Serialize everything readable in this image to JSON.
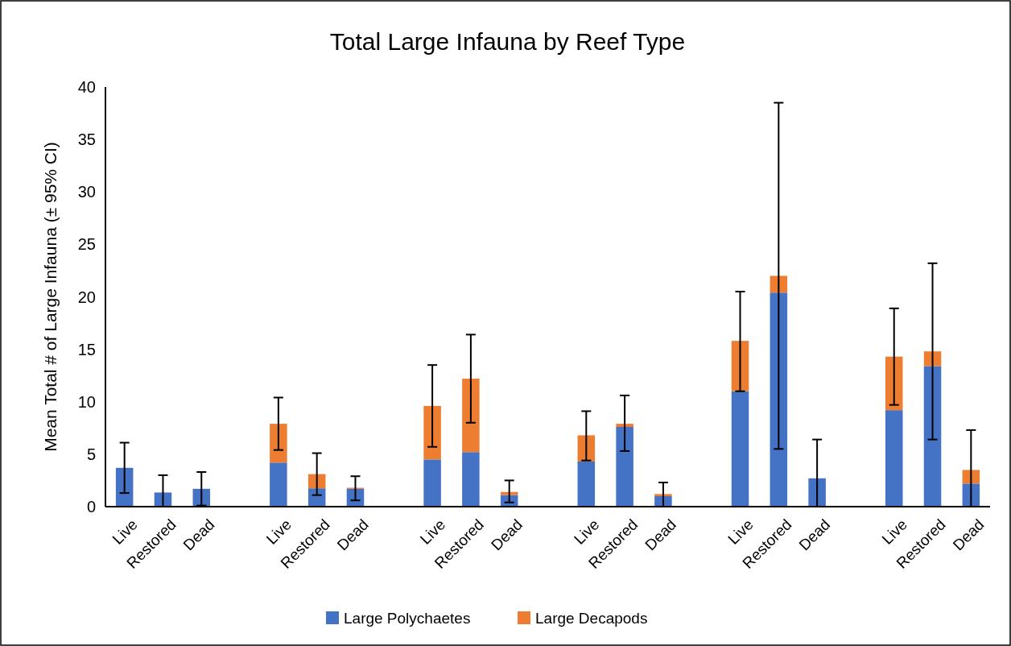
{
  "chart_data": {
    "type": "bar",
    "title": "Total Large Infauna by Reef Type",
    "ylabel": "Mean Total # of Large Infauna (± 95% CI)",
    "categories": [
      "Live",
      "Restored",
      "Dead",
      null,
      "Live",
      "Restored",
      "Dead",
      null,
      "Live",
      "Restored",
      "Dead",
      null,
      "Live",
      "Restored",
      "Dead",
      null,
      "Live",
      "Restored",
      "Dead",
      null,
      "Live",
      "Restored",
      "Dead"
    ],
    "stacked": true,
    "series": [
      {
        "name": "Large Polychaetes",
        "color": "#4472c4",
        "values": [
          3.7,
          1.35,
          1.7,
          null,
          4.2,
          1.75,
          1.7,
          null,
          4.5,
          5.2,
          1.1,
          null,
          4.3,
          7.6,
          1.0,
          null,
          11.0,
          20.4,
          2.7,
          null,
          9.2,
          13.4,
          2.2
        ],
        "errors": [
          [
            1.3,
            6.1
          ],
          [
            0,
            3.0
          ],
          [
            0.1,
            3.3
          ],
          null,
          null,
          null,
          null,
          null,
          null,
          null,
          null,
          null,
          null,
          null,
          null,
          null,
          null,
          null,
          [
            0,
            6.4
          ],
          null,
          null,
          null,
          null
        ]
      },
      {
        "name": "Large Decapods",
        "color": "#ed7d31",
        "values": [
          null,
          null,
          null,
          null,
          3.7,
          1.35,
          0.1,
          null,
          5.1,
          7.0,
          0.3,
          null,
          2.5,
          0.3,
          0.2,
          null,
          4.8,
          1.6,
          null,
          null,
          5.1,
          1.4,
          1.3
        ],
        "errors": [
          null,
          null,
          null,
          null,
          [
            5.4,
            10.4
          ],
          [
            1.1,
            5.1
          ],
          [
            0.6,
            2.9
          ],
          null,
          [
            5.7,
            13.5
          ],
          [
            8.0,
            16.4
          ],
          [
            0.4,
            2.5
          ],
          null,
          [
            4.4,
            9.1
          ],
          [
            5.3,
            10.6
          ],
          [
            0,
            2.3
          ],
          null,
          [
            11.0,
            20.5
          ],
          [
            5.5,
            38.5
          ],
          null,
          null,
          [
            9.7,
            18.9
          ],
          [
            6.4,
            23.2
          ],
          [
            0,
            7.3
          ]
        ]
      }
    ],
    "ylim": [
      0,
      40
    ],
    "yticks": [
      0,
      5,
      10,
      15,
      20,
      25,
      30,
      35,
      40
    ],
    "grid": false,
    "legend": "bottom"
  }
}
